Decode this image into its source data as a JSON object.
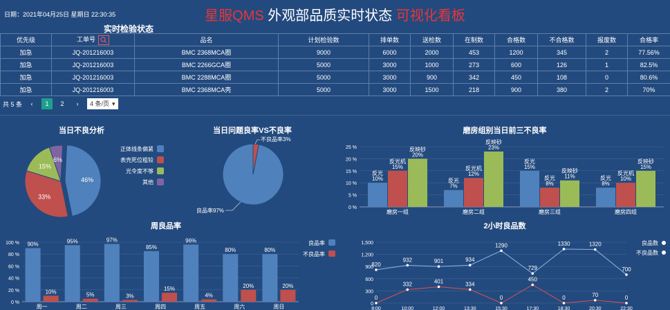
{
  "header": {
    "date_label": "日期：2021年04月25日 星期日  22:30:35",
    "title_part1": "星服QMS",
    "title_part2": "外观部品质实时状态",
    "title_part3": "可视化看板"
  },
  "inspection": {
    "title": "实时检验状态",
    "columns": [
      "优先级",
      "工单号",
      "品名",
      "计划检验数",
      "排单数",
      "送检数",
      "在制数",
      "合格数",
      "不合格数",
      "报废数",
      "合格率"
    ],
    "rows": [
      [
        "加急",
        "JQ-201216003",
        "BMC 2368MCA圈",
        "9000",
        "6000",
        "2000",
        "453",
        "1200",
        "345",
        "2",
        "77.56%"
      ],
      [
        "加急",
        "JQ-201216003",
        "BMC 2266GCA圈",
        "5000",
        "3000",
        "1000",
        "273",
        "600",
        "126",
        "1",
        "82.5%"
      ],
      [
        "加急",
        "JQ-201216003",
        "BMC 2288MCA圈",
        "5000",
        "3000",
        "900",
        "342",
        "450",
        "108",
        "0",
        "80.6%"
      ],
      [
        "加急",
        "JQ-201216003",
        "BMC 2368MCA壳",
        "5000",
        "3000",
        "1500",
        "218",
        "900",
        "380",
        "2",
        "70%"
      ]
    ]
  },
  "pagination": {
    "total": "共 5 条",
    "prev": "‹",
    "pages": [
      "1",
      "2"
    ],
    "next": "›",
    "page_size": "4 条/页"
  },
  "chart_data": [
    {
      "type": "pie",
      "title": "当日不良分析",
      "labels": [
        "正体线条偏紧",
        "表壳死位粗较",
        "光令度不够",
        "其他"
      ],
      "values": [
        46,
        33,
        15,
        6
      ],
      "colors": [
        "#4f81bd",
        "#c0504d",
        "#9bbb59",
        "#8064a2"
      ],
      "legend": "right"
    },
    {
      "type": "pie",
      "title": "当日问题良率VS不良率",
      "labels": [
        "良品率97%",
        "不良品率3%"
      ],
      "values": [
        97,
        3
      ],
      "colors": [
        "#4f81bd",
        "#c0504d"
      ]
    },
    {
      "type": "bar",
      "title": "磨房组别当日前三不良率",
      "categories": [
        "磨房一组",
        "磨房二组",
        "磨房三组",
        "磨房四组"
      ],
      "series": [
        {
          "values": [
            10,
            7,
            15,
            8
          ],
          "labels": [
            "反光",
            "反光",
            "反光",
            "反光"
          ],
          "color": "#4f81bd"
        },
        {
          "values": [
            15,
            12,
            8,
            10
          ],
          "labels": [
            "反光机",
            "反光机",
            "反光",
            "反光机"
          ],
          "color": "#c0504d"
        },
        {
          "values": [
            20,
            23,
            11,
            15
          ],
          "labels": [
            "反映砂",
            "反映砂",
            "反映砂",
            "反映砂"
          ],
          "color": "#9bbb59"
        }
      ],
      "yticks": [
        "0 %",
        "5 %",
        "10 %",
        "15 %",
        "20 %",
        "25 %"
      ],
      "ylim": [
        0,
        25
      ]
    },
    {
      "type": "bar",
      "title": "周良品率",
      "categories": [
        "周一",
        "周二",
        "周三",
        "周四",
        "周五",
        "周六",
        "周日"
      ],
      "series": [
        {
          "name": "良品率",
          "values": [
            90,
            95,
            97,
            85,
            96,
            80,
            80
          ],
          "color": "#4f81bd"
        },
        {
          "name": "不良品率",
          "values": [
            10,
            5,
            3,
            15,
            4,
            20,
            20
          ],
          "color": "#c0504d"
        }
      ],
      "yticks": [
        "0 %",
        "20 %",
        "40 %",
        "60 %",
        "80 %",
        "100 %"
      ],
      "ylim": [
        0,
        100
      ],
      "legend": "right"
    },
    {
      "type": "line",
      "title": "2小时良品数",
      "x": [
        "8:00",
        "10:00",
        "12:00",
        "13:30",
        "15:30",
        "17:30",
        "18:30",
        "20:30",
        "22:30"
      ],
      "series": [
        {
          "name": "良品数",
          "values": [
            820,
            932,
            901,
            934,
            1290,
            729,
            1330,
            1320,
            700
          ],
          "color": "#8fb4e3"
        },
        {
          "name": "不良品数",
          "values": [
            0,
            332,
            401,
            334,
            0,
            450,
            0,
            70,
            0
          ],
          "color": "#e05050"
        }
      ],
      "yticks": [
        "0",
        "300",
        "600",
        "900",
        "1,200",
        "1,500"
      ],
      "ylim": [
        0,
        1500
      ],
      "legend": "right"
    }
  ]
}
